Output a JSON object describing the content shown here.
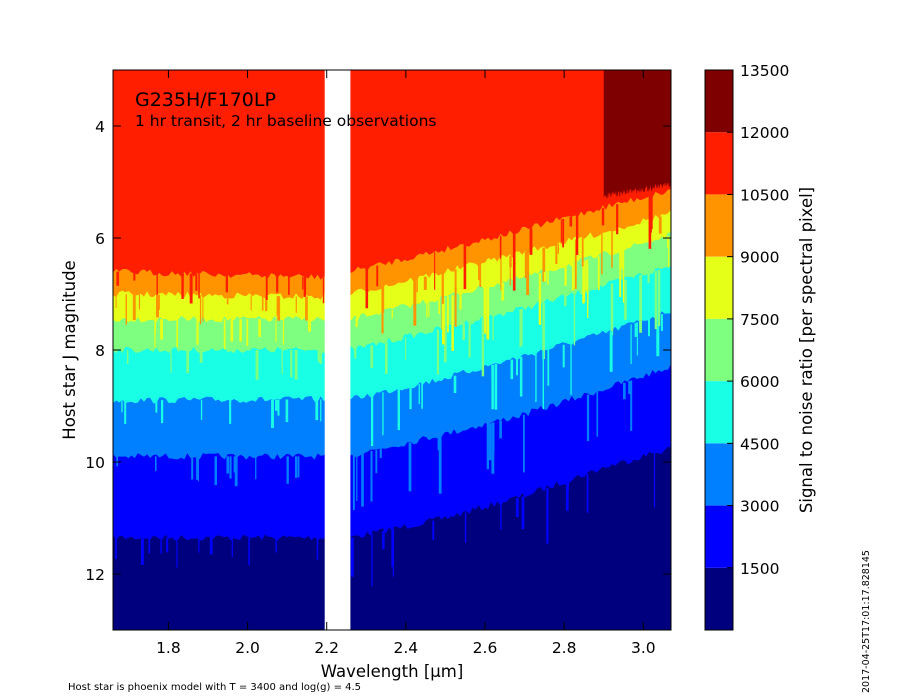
{
  "chart_data": {
    "type": "heatmap",
    "title": "G235H/F170LP",
    "subtitle": "1 hr transit, 2 hr baseline observations",
    "xlabel": "Wavelength [μm]",
    "ylabel": "Host star J magnitude",
    "xlim": [
      1.66,
      3.07
    ],
    "ylim": [
      13.0,
      3.0
    ],
    "y_inverted": true,
    "x_ticks": [
      1.8,
      2.0,
      2.2,
      2.4,
      2.6,
      2.8,
      3.0
    ],
    "x_tick_labels": [
      "1.8",
      "2.0",
      "2.2",
      "2.4",
      "2.6",
      "2.8",
      "3.0"
    ],
    "y_ticks": [
      4,
      6,
      8,
      10,
      12
    ],
    "y_tick_labels": [
      "4",
      "6",
      "8",
      "10",
      "12"
    ],
    "detector_gap": [
      2.195,
      2.26
    ],
    "colorbar": {
      "label": "Signal to noise ratio [per spectral pixel]",
      "levels": [
        0,
        1500,
        3000,
        4500,
        6000,
        7500,
        9000,
        10500,
        12000,
        13500
      ],
      "tick_values": [
        1500,
        3000,
        4500,
        6000,
        7500,
        9000,
        10500,
        12000,
        13500
      ],
      "tick_labels": [
        "1500",
        "3000",
        "4500",
        "6000",
        "7500",
        "9000",
        "10500",
        "12000",
        "13500"
      ],
      "colors": [
        "#00007f",
        "#0000ff",
        "#007fff",
        "#19ffe5",
        "#7fff7f",
        "#e5ff19",
        "#ff9400",
        "#ff1e00",
        "#7f0000"
      ]
    },
    "contour_boundaries": [
      {
        "snr": 1500,
        "points": [
          [
            1.66,
            11.35
          ],
          [
            2.195,
            11.35
          ],
          [
            2.26,
            11.35
          ],
          [
            2.5,
            11.0
          ],
          [
            2.7,
            10.6
          ],
          [
            2.9,
            10.1
          ],
          [
            3.07,
            9.75
          ]
        ]
      },
      {
        "snr": 3000,
        "points": [
          [
            1.66,
            9.9
          ],
          [
            2.195,
            9.9
          ],
          [
            2.26,
            9.88
          ],
          [
            2.5,
            9.5
          ],
          [
            2.7,
            9.15
          ],
          [
            2.9,
            8.7
          ],
          [
            3.07,
            8.3
          ]
        ]
      },
      {
        "snr": 4500,
        "points": [
          [
            1.66,
            8.9
          ],
          [
            2.195,
            8.88
          ],
          [
            2.26,
            8.88
          ],
          [
            2.5,
            8.5
          ],
          [
            2.7,
            8.1
          ],
          [
            2.9,
            7.7
          ],
          [
            3.07,
            7.3
          ]
        ]
      },
      {
        "snr": 6000,
        "points": [
          [
            1.66,
            8.0
          ],
          [
            2.195,
            8.0
          ],
          [
            2.26,
            8.0
          ],
          [
            2.5,
            7.6
          ],
          [
            2.7,
            7.25
          ],
          [
            2.9,
            6.85
          ],
          [
            3.07,
            6.5
          ]
        ]
      },
      {
        "snr": 7500,
        "points": [
          [
            1.66,
            7.45
          ],
          [
            2.195,
            7.45
          ],
          [
            2.26,
            7.45
          ],
          [
            2.5,
            7.05
          ],
          [
            2.7,
            6.7
          ],
          [
            2.9,
            6.3
          ],
          [
            3.07,
            5.95
          ]
        ]
      },
      {
        "snr": 9000,
        "points": [
          [
            1.66,
            7.0
          ],
          [
            2.195,
            7.05
          ],
          [
            2.26,
            7.0
          ],
          [
            2.5,
            6.6
          ],
          [
            2.7,
            6.25
          ],
          [
            2.9,
            5.9
          ],
          [
            3.07,
            5.55
          ]
        ]
      },
      {
        "snr": 10500,
        "points": [
          [
            1.66,
            6.6
          ],
          [
            2.195,
            6.7
          ],
          [
            2.26,
            6.6
          ],
          [
            2.5,
            6.2
          ],
          [
            2.7,
            5.85
          ],
          [
            2.9,
            5.45
          ],
          [
            3.07,
            5.15
          ]
        ]
      },
      {
        "snr": 12000,
        "points": [
          [
            2.9,
            5.25
          ],
          [
            3.07,
            5.05
          ]
        ]
      }
    ]
  },
  "footnote": "Host star is phoenix model with T = 3400 and log(g) = 4.5",
  "timestamp": "2017-04-25T17:01:17.828145"
}
